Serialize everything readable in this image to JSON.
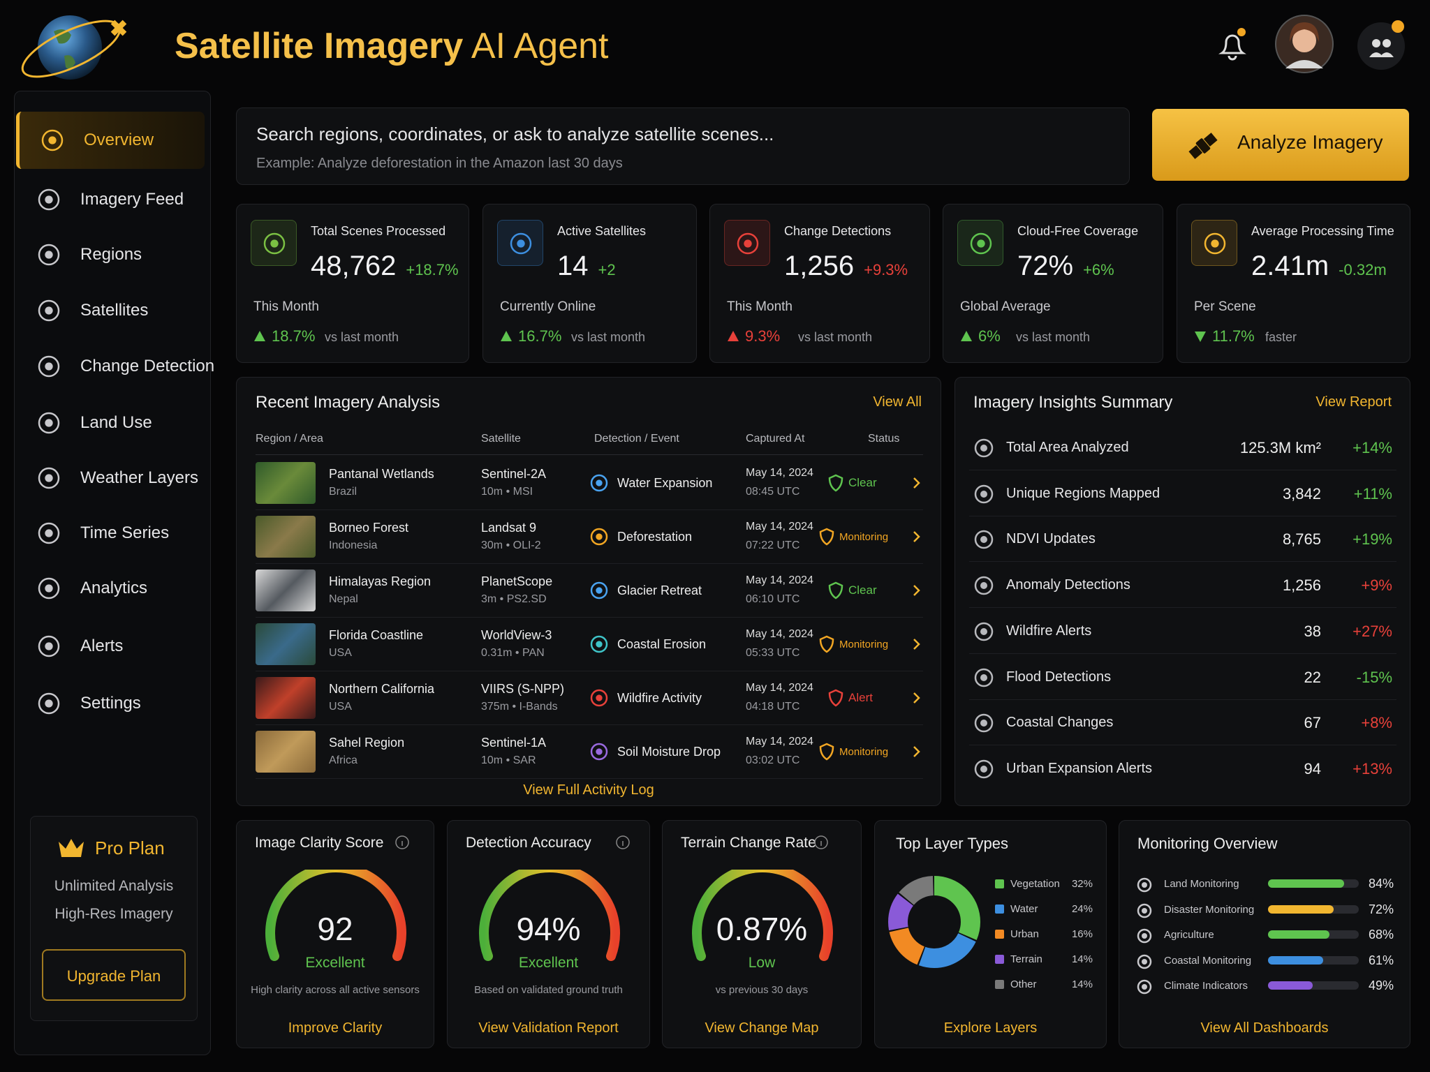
{
  "header": {
    "title_bold": "Satellite Imagery",
    "title_light": "AI Agent"
  },
  "nav": {
    "items": [
      "Overview",
      "Imagery Feed",
      "Regions",
      "Satellites",
      "Change Detection",
      "Land Use",
      "Weather Layers",
      "Time Series",
      "Analytics",
      "Alerts",
      "Settings"
    ]
  },
  "plan": {
    "name": "Pro Plan",
    "features": [
      "Unlimited Analysis",
      "High-Res Imagery"
    ],
    "button": "Upgrade Plan"
  },
  "search": {
    "placeholder": "Search regions, coordinates, or ask to analyze satellite scenes...",
    "example": "Example: Analyze deforestation in the Amazon last 30 days",
    "button": "Analyze Imagery"
  },
  "kpis": [
    {
      "title": "Total Scenes Processed",
      "value": "48,762",
      "delta": "+18.7%",
      "subtitle": "This Month",
      "trend": "18.7%",
      "trend_text": "vs last month",
      "color": "#5fc44f",
      "delta_color": "#5fc44f",
      "arrow": "up",
      "icon_color": "#7bc043"
    },
    {
      "title": "Active Satellites",
      "value": "14",
      "delta": "+2",
      "subtitle": "Currently Online",
      "trend": "16.7%",
      "trend_text": "vs last month",
      "color": "#5fc44f",
      "delta_color": "#5fc44f",
      "arrow": "up",
      "icon_color": "#3d8fe0"
    },
    {
      "title": "Change Detections",
      "value": "1,256",
      "delta": "+9.3%",
      "subtitle": "This Month",
      "trend": "9.3%",
      "trend_text": "vs last month",
      "color": "#e8413a",
      "delta_color": "#e8413a",
      "arrow": "up",
      "icon_color": "#e8413a"
    },
    {
      "title": "Cloud-Free Coverage",
      "value": "72%",
      "delta": "+6%",
      "subtitle": "Global Average",
      "trend": "6%",
      "trend_text": "vs last month",
      "color": "#5fc44f",
      "delta_color": "#5fc44f",
      "arrow": "up",
      "icon_color": "#5fc44f"
    },
    {
      "title": "Average Processing Time",
      "value": "2.41m",
      "delta": "-0.32m",
      "subtitle": "Per Scene",
      "trend": "11.7%",
      "trend_text": "faster",
      "color": "#5fc44f",
      "delta_color": "#5fc44f",
      "arrow": "down",
      "icon_color": "#f2b630"
    }
  ],
  "recent": {
    "title": "Recent Imagery Analysis",
    "link": "View All",
    "columns": [
      "Region / Area",
      "Satellite",
      "Detection / Event",
      "Captured At",
      "Status"
    ],
    "rows": [
      {
        "region": "Pantanal Wetlands",
        "country": "Brazil",
        "satellite": "Sentinel-2A",
        "spec": "10m • MSI",
        "event": "Water Expansion",
        "date": "May 14, 2024",
        "time": "08:45 UTC",
        "status": "Clear",
        "status_color": "#5fc44f",
        "event_color": "#4aa3f0",
        "thumb": [
          "#2f5a2a",
          "#6a8a3a"
        ]
      },
      {
        "region": "Borneo Forest",
        "country": "Indonesia",
        "satellite": "Landsat 9",
        "spec": "30m • OLI-2",
        "event": "Deforestation",
        "date": "May 14, 2024",
        "time": "07:22 UTC",
        "status": "Monitoring",
        "status_color": "#f2a623",
        "event_color": "#f2a623",
        "thumb": [
          "#4a5a2a",
          "#8a7a4a"
        ]
      },
      {
        "region": "Himalayas Region",
        "country": "Nepal",
        "satellite": "PlanetScope",
        "spec": "3m • PS2.SD",
        "event": "Glacier Retreat",
        "date": "May 14, 2024",
        "time": "06:10 UTC",
        "status": "Clear",
        "status_color": "#5fc44f",
        "event_color": "#4aa3f0",
        "thumb": [
          "#d8d8d8",
          "#555a60"
        ]
      },
      {
        "region": "Florida Coastline",
        "country": "USA",
        "satellite": "WorldView-3",
        "spec": "0.31m • PAN",
        "event": "Coastal Erosion",
        "date": "May 14, 2024",
        "time": "05:33 UTC",
        "status": "Monitoring",
        "status_color": "#f2a623",
        "event_color": "#3fc4c8",
        "thumb": [
          "#2a4a3a",
          "#3a6a8a"
        ]
      },
      {
        "region": "Northern California",
        "country": "USA",
        "satellite": "VIIRS (S-NPP)",
        "spec": "375m • I-Bands",
        "event": "Wildfire Activity",
        "date": "May 14, 2024",
        "time": "04:18 UTC",
        "status": "Alert",
        "status_color": "#e8413a",
        "event_color": "#e8413a",
        "thumb": [
          "#3a1a1a",
          "#c0402a"
        ]
      },
      {
        "region": "Sahel Region",
        "country": "Africa",
        "satellite": "Sentinel-1A",
        "spec": "10m • SAR",
        "event": "Soil Moisture Drop",
        "date": "May 14, 2024",
        "time": "03:02 UTC",
        "status": "Monitoring",
        "status_color": "#f2a623",
        "event_color": "#9a6ae0",
        "thumb": [
          "#8a6a3a",
          "#c09a5a"
        ]
      }
    ],
    "footer_link": "View Full Activity Log"
  },
  "insights": {
    "title": "Imagery Insights Summary",
    "link": "View Report",
    "rows": [
      {
        "label": "Total Area Analyzed",
        "value": "125.3M km²",
        "change": "+14%",
        "color": "#5fc44f"
      },
      {
        "label": "Unique Regions Mapped",
        "value": "3,842",
        "change": "+11%",
        "color": "#5fc44f"
      },
      {
        "label": "NDVI Updates",
        "value": "8,765",
        "change": "+19%",
        "color": "#5fc44f"
      },
      {
        "label": "Anomaly Detections",
        "value": "1,256",
        "change": "+9%",
        "color": "#e8413a"
      },
      {
        "label": "Wildfire Alerts",
        "value": "38",
        "change": "+27%",
        "color": "#e8413a"
      },
      {
        "label": "Flood Detections",
        "value": "22",
        "change": "-15%",
        "color": "#5fc44f"
      },
      {
        "label": "Coastal Changes",
        "value": "67",
        "change": "+8%",
        "color": "#e8413a"
      },
      {
        "label": "Urban Expansion Alerts",
        "value": "94",
        "change": "+13%",
        "color": "#e8413a"
      }
    ]
  },
  "gauges": [
    {
      "title": "Image Clarity Score",
      "value": "92",
      "rating": "Excellent",
      "note": "High clarity across all active sensors",
      "link": "Improve Clarity"
    },
    {
      "title": "Detection Accuracy",
      "value": "94%",
      "rating": "Excellent",
      "note": "Based on validated ground truth",
      "link": "View Validation Report"
    },
    {
      "title": "Terrain Change Rate",
      "value": "0.87%",
      "rating": "Low",
      "note": "vs previous 30 days",
      "link": "View Change Map"
    }
  ],
  "layers": {
    "title": "Top Layer Types",
    "link": "Explore Layers",
    "items": [
      {
        "name": "Vegetation",
        "value": 32,
        "label": "32%",
        "color": "#5fc44f"
      },
      {
        "name": "Water",
        "value": 24,
        "label": "24%",
        "color": "#3d8fe0"
      },
      {
        "name": "Urban",
        "value": 16,
        "label": "16%",
        "color": "#f28a23"
      },
      {
        "name": "Terrain",
        "value": 14,
        "label": "14%",
        "color": "#8a5ad8"
      },
      {
        "name": "Other",
        "value": 14,
        "label": "14%",
        "color": "#7a7a7a"
      }
    ]
  },
  "monitoring": {
    "title": "Monitoring Overview",
    "link": "View All Dashboards",
    "items": [
      {
        "name": "Land Monitoring",
        "value": 84,
        "label": "84%",
        "color": "#5fc44f"
      },
      {
        "name": "Disaster Monitoring",
        "value": 72,
        "label": "72%",
        "color": "#f2b630"
      },
      {
        "name": "Agriculture",
        "value": 68,
        "label": "68%",
        "color": "#5fc44f"
      },
      {
        "name": "Coastal Monitoring",
        "value": 61,
        "label": "61%",
        "color": "#3d8fe0"
      },
      {
        "name": "Climate Indicators",
        "value": 49,
        "label": "49%",
        "color": "#8a5ad8"
      }
    ]
  }
}
